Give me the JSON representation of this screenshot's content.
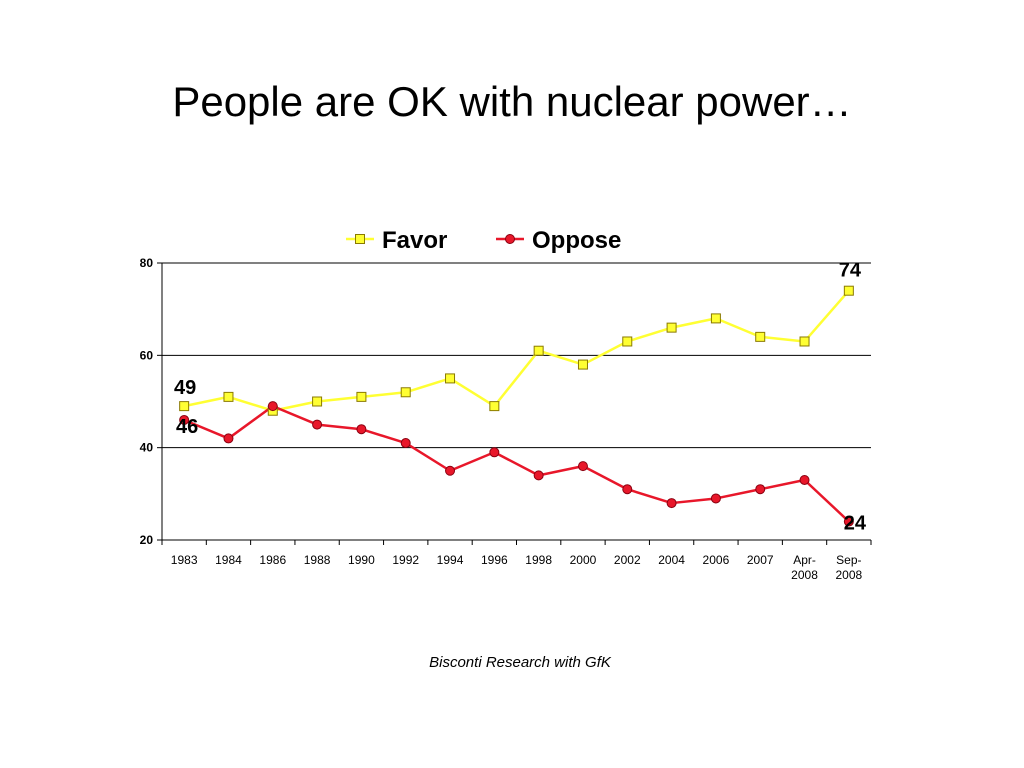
{
  "slide": {
    "title": "People are OK with nuclear power…",
    "source": "Bisconti Research with GfK"
  },
  "colors": {
    "favor_line": "#ffff33",
    "favor_marker_fill": "#ffff33",
    "favor_marker_stroke": "#8a7a00",
    "oppose_line": "#e8172a",
    "oppose_marker_fill": "#e8172a",
    "oppose_marker_stroke": "#8a0010",
    "grid": "#000000"
  },
  "chart_data": {
    "type": "line",
    "categories": [
      "1983",
      "1984",
      "1986",
      "1988",
      "1990",
      "1992",
      "1994",
      "1996",
      "1998",
      "2000",
      "2002",
      "2004",
      "2006",
      "2007",
      "Apr-\n2008",
      "Sep-\n2008"
    ],
    "series": [
      {
        "name": "Favor",
        "marker": "square",
        "values": [
          49,
          51,
          48,
          50,
          51,
          52,
          55,
          49,
          61,
          58,
          63,
          66,
          68,
          64,
          63,
          74
        ]
      },
      {
        "name": "Oppose",
        "marker": "circle",
        "values": [
          46,
          42,
          49,
          45,
          44,
          41,
          35,
          39,
          34,
          36,
          31,
          28,
          29,
          31,
          33,
          24
        ]
      }
    ],
    "yticks": [
      20,
      40,
      60,
      80
    ],
    "ylim": [
      20,
      80
    ],
    "grid": true,
    "legend": "top-center",
    "annotations": [
      {
        "series": 0,
        "index": 0,
        "text": "49"
      },
      {
        "series": 1,
        "index": 0,
        "text": "46"
      },
      {
        "series": 0,
        "index": 15,
        "text": "74"
      },
      {
        "series": 1,
        "index": 15,
        "text": "24"
      }
    ]
  }
}
